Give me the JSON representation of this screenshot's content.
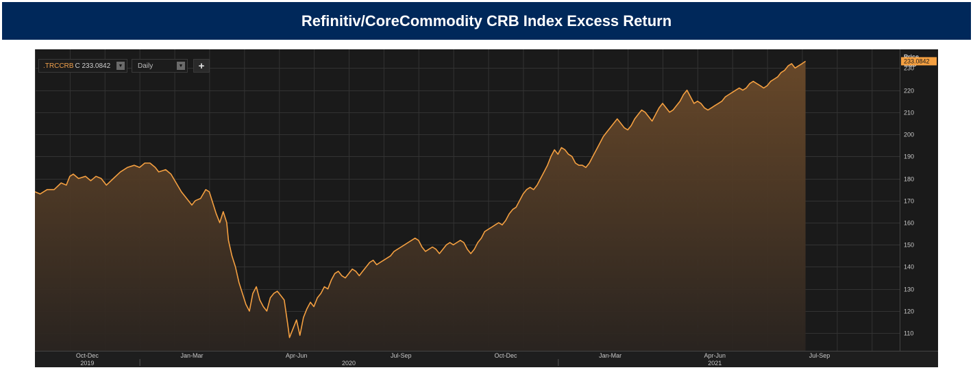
{
  "header": {
    "title": "Refinitiv/CoreCommodity CRB Index Excess Return"
  },
  "toolbar": {
    "ric": ".TRCCRB",
    "close_value": "C 233.0842",
    "interval": "Daily",
    "add_label": "+"
  },
  "axis": {
    "unit_line1": "Price",
    "unit_line2": "USD",
    "last_value": "233.0842"
  },
  "colors": {
    "banner": "#00285a",
    "panel": "#1a1a1a",
    "line": "#f5a041",
    "last_tag": "#f5a041"
  },
  "chart_data": {
    "type": "area",
    "ylim": [
      102,
      236
    ],
    "yticks": [
      110,
      120,
      130,
      140,
      150,
      160,
      170,
      180,
      190,
      200,
      210,
      220,
      230
    ],
    "x_domain": [
      0,
      24.8
    ],
    "month_ticks": [
      0,
      1,
      2,
      3,
      4,
      5,
      6,
      7,
      8,
      9,
      10,
      11,
      12,
      13,
      14,
      15,
      16,
      17,
      18,
      19,
      20,
      21,
      22,
      23,
      24
    ],
    "quarter_labels": [
      {
        "x": 1.5,
        "label": "Oct-Dec"
      },
      {
        "x": 4.5,
        "label": "Jan-Mar"
      },
      {
        "x": 7.5,
        "label": "Apr-Jun"
      },
      {
        "x": 10.5,
        "label": "Jul-Sep"
      },
      {
        "x": 13.5,
        "label": "Oct-Dec"
      },
      {
        "x": 16.5,
        "label": "Jan-Mar"
      },
      {
        "x": 19.5,
        "label": "Apr-Jun"
      },
      {
        "x": 22.5,
        "label": "Jul-Sep"
      }
    ],
    "year_labels": [
      {
        "x": 1.5,
        "label": "2019"
      },
      {
        "x": 9.0,
        "label": "2020"
      },
      {
        "x": 19.5,
        "label": "2021"
      }
    ],
    "year_separators": [
      3,
      15
    ],
    "series": [
      {
        "values": [
          [
            0.0,
            174
          ],
          [
            0.15,
            173
          ],
          [
            0.35,
            175
          ],
          [
            0.55,
            175
          ],
          [
            0.75,
            178
          ],
          [
            0.9,
            177
          ],
          [
            1.0,
            181
          ],
          [
            1.1,
            182
          ],
          [
            1.25,
            180
          ],
          [
            1.45,
            181
          ],
          [
            1.6,
            179
          ],
          [
            1.75,
            181
          ],
          [
            1.9,
            180
          ],
          [
            2.05,
            177
          ],
          [
            2.25,
            180
          ],
          [
            2.45,
            183
          ],
          [
            2.65,
            185
          ],
          [
            2.85,
            186
          ],
          [
            3.0,
            185
          ],
          [
            3.15,
            187
          ],
          [
            3.3,
            187
          ],
          [
            3.45,
            185
          ],
          [
            3.55,
            183
          ],
          [
            3.75,
            184
          ],
          [
            3.9,
            182
          ],
          [
            4.05,
            178
          ],
          [
            4.2,
            174
          ],
          [
            4.35,
            171
          ],
          [
            4.5,
            168
          ],
          [
            4.6,
            170
          ],
          [
            4.75,
            171
          ],
          [
            4.9,
            175
          ],
          [
            5.0,
            174
          ],
          [
            5.1,
            169
          ],
          [
            5.2,
            164
          ],
          [
            5.3,
            160
          ],
          [
            5.4,
            165
          ],
          [
            5.5,
            160
          ],
          [
            5.55,
            152
          ],
          [
            5.65,
            145
          ],
          [
            5.75,
            140
          ],
          [
            5.85,
            133
          ],
          [
            5.95,
            128
          ],
          [
            6.05,
            123
          ],
          [
            6.15,
            120
          ],
          [
            6.25,
            128
          ],
          [
            6.35,
            131
          ],
          [
            6.45,
            125
          ],
          [
            6.55,
            122
          ],
          [
            6.65,
            120
          ],
          [
            6.75,
            126
          ],
          [
            6.85,
            128
          ],
          [
            6.95,
            129
          ],
          [
            7.05,
            127
          ],
          [
            7.15,
            125
          ],
          [
            7.25,
            114
          ],
          [
            7.3,
            108
          ],
          [
            7.4,
            112
          ],
          [
            7.5,
            116
          ],
          [
            7.6,
            109
          ],
          [
            7.7,
            117
          ],
          [
            7.8,
            121
          ],
          [
            7.9,
            124
          ],
          [
            8.0,
            122
          ],
          [
            8.1,
            126
          ],
          [
            8.2,
            128
          ],
          [
            8.3,
            131
          ],
          [
            8.4,
            130
          ],
          [
            8.5,
            134
          ],
          [
            8.6,
            137
          ],
          [
            8.7,
            138
          ],
          [
            8.8,
            136
          ],
          [
            8.9,
            135
          ],
          [
            9.0,
            137
          ],
          [
            9.1,
            139
          ],
          [
            9.2,
            138
          ],
          [
            9.3,
            136
          ],
          [
            9.4,
            138
          ],
          [
            9.5,
            140
          ],
          [
            9.6,
            142
          ],
          [
            9.7,
            143
          ],
          [
            9.8,
            141
          ],
          [
            9.9,
            142
          ],
          [
            10.0,
            143
          ],
          [
            10.1,
            144
          ],
          [
            10.2,
            145
          ],
          [
            10.3,
            147
          ],
          [
            10.4,
            148
          ],
          [
            10.5,
            149
          ],
          [
            10.6,
            150
          ],
          [
            10.7,
            151
          ],
          [
            10.8,
            152
          ],
          [
            10.9,
            153
          ],
          [
            11.0,
            152
          ],
          [
            11.1,
            149
          ],
          [
            11.2,
            147
          ],
          [
            11.3,
            148
          ],
          [
            11.4,
            149
          ],
          [
            11.5,
            148
          ],
          [
            11.6,
            146
          ],
          [
            11.7,
            148
          ],
          [
            11.8,
            150
          ],
          [
            11.9,
            151
          ],
          [
            12.0,
            150
          ],
          [
            12.1,
            151
          ],
          [
            12.2,
            152
          ],
          [
            12.3,
            151
          ],
          [
            12.4,
            148
          ],
          [
            12.5,
            146
          ],
          [
            12.6,
            148
          ],
          [
            12.7,
            151
          ],
          [
            12.8,
            153
          ],
          [
            12.9,
            156
          ],
          [
            13.0,
            157
          ],
          [
            13.1,
            158
          ],
          [
            13.2,
            159
          ],
          [
            13.3,
            160
          ],
          [
            13.4,
            159
          ],
          [
            13.5,
            161
          ],
          [
            13.6,
            164
          ],
          [
            13.7,
            166
          ],
          [
            13.8,
            167
          ],
          [
            13.9,
            170
          ],
          [
            14.0,
            173
          ],
          [
            14.1,
            175
          ],
          [
            14.2,
            176
          ],
          [
            14.3,
            175
          ],
          [
            14.4,
            177
          ],
          [
            14.5,
            180
          ],
          [
            14.6,
            183
          ],
          [
            14.7,
            186
          ],
          [
            14.8,
            190
          ],
          [
            14.9,
            193
          ],
          [
            15.0,
            191
          ],
          [
            15.1,
            194
          ],
          [
            15.2,
            193
          ],
          [
            15.3,
            191
          ],
          [
            15.4,
            190
          ],
          [
            15.5,
            187
          ],
          [
            15.6,
            186
          ],
          [
            15.7,
            186
          ],
          [
            15.8,
            185
          ],
          [
            15.9,
            187
          ],
          [
            16.0,
            190
          ],
          [
            16.1,
            193
          ],
          [
            16.2,
            196
          ],
          [
            16.3,
            199
          ],
          [
            16.4,
            201
          ],
          [
            16.5,
            203
          ],
          [
            16.6,
            205
          ],
          [
            16.7,
            207
          ],
          [
            16.8,
            205
          ],
          [
            16.9,
            203
          ],
          [
            17.0,
            202
          ],
          [
            17.1,
            204
          ],
          [
            17.2,
            207
          ],
          [
            17.3,
            209
          ],
          [
            17.4,
            211
          ],
          [
            17.5,
            210
          ],
          [
            17.6,
            208
          ],
          [
            17.7,
            206
          ],
          [
            17.8,
            209
          ],
          [
            17.9,
            212
          ],
          [
            18.0,
            214
          ],
          [
            18.1,
            212
          ],
          [
            18.2,
            210
          ],
          [
            18.3,
            211
          ],
          [
            18.4,
            213
          ],
          [
            18.5,
            215
          ],
          [
            18.6,
            218
          ],
          [
            18.7,
            220
          ],
          [
            18.8,
            217
          ],
          [
            18.9,
            214
          ],
          [
            19.0,
            215
          ],
          [
            19.1,
            214
          ],
          [
            19.2,
            212
          ],
          [
            19.3,
            211
          ],
          [
            19.4,
            212
          ],
          [
            19.5,
            213
          ],
          [
            19.6,
            214
          ],
          [
            19.7,
            215
          ],
          [
            19.8,
            217
          ],
          [
            19.9,
            218
          ],
          [
            20.0,
            219
          ],
          [
            20.1,
            220
          ],
          [
            20.2,
            221
          ],
          [
            20.3,
            220
          ],
          [
            20.4,
            221
          ],
          [
            20.5,
            223
          ],
          [
            20.6,
            224
          ],
          [
            20.7,
            223
          ],
          [
            20.8,
            222
          ],
          [
            20.9,
            221
          ],
          [
            21.0,
            222
          ],
          [
            21.1,
            224
          ],
          [
            21.2,
            225
          ],
          [
            21.3,
            226
          ],
          [
            21.4,
            228
          ],
          [
            21.5,
            229
          ],
          [
            21.6,
            231
          ],
          [
            21.7,
            232
          ],
          [
            21.8,
            230
          ],
          [
            21.9,
            231
          ],
          [
            22.0,
            232
          ],
          [
            22.1,
            233.0842
          ]
        ]
      }
    ]
  }
}
